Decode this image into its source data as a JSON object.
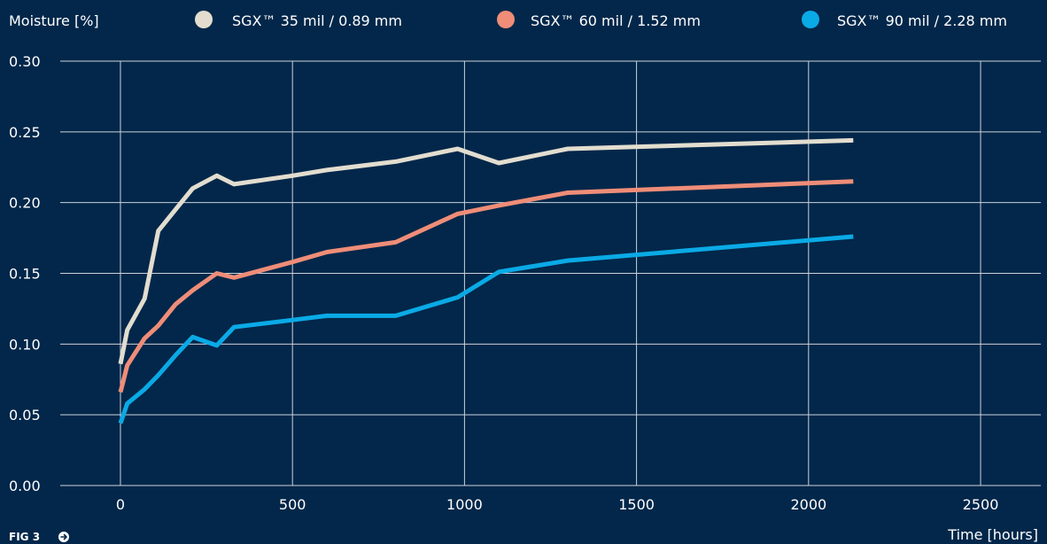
{
  "chart_data": {
    "type": "line",
    "title": "",
    "xlabel": "Time [hours]",
    "ylabel": "Moisture [%]",
    "xlim": [
      -175,
      2675
    ],
    "ylim": [
      0,
      0.3
    ],
    "x_ticks": [
      "0",
      "500",
      "1000",
      "1500",
      "2000",
      "2500"
    ],
    "x_tick_values": [
      0,
      500,
      1000,
      1500,
      2000,
      2500
    ],
    "y_ticks": [
      "0.00",
      "0.05",
      "0.10",
      "0.15",
      "0.20",
      "0.25",
      "0.30"
    ],
    "y_tick_values": [
      0,
      0.05,
      0.1,
      0.15,
      0.2,
      0.25,
      0.3
    ],
    "grid": true,
    "legend_position": "top",
    "series": [
      {
        "name": "SGX™ 35 mil / 0.89 mm",
        "color": "#e2ddcf",
        "points": [
          [
            0,
            0.086
          ],
          [
            20,
            0.11
          ],
          [
            70,
            0.132
          ],
          [
            110,
            0.18
          ],
          [
            160,
            0.195
          ],
          [
            210,
            0.21
          ],
          [
            280,
            0.219
          ],
          [
            330,
            0.213
          ],
          [
            500,
            0.219
          ],
          [
            600,
            0.223
          ],
          [
            800,
            0.229
          ],
          [
            980,
            0.238
          ],
          [
            1100,
            0.228
          ],
          [
            1300,
            0.238
          ],
          [
            2130,
            0.244
          ]
        ]
      },
      {
        "name": "SGX™ 60 mil / 1.52 mm",
        "color": "#ef8d78",
        "points": [
          [
            0,
            0.066
          ],
          [
            20,
            0.085
          ],
          [
            70,
            0.104
          ],
          [
            110,
            0.113
          ],
          [
            160,
            0.128
          ],
          [
            210,
            0.138
          ],
          [
            280,
            0.15
          ],
          [
            330,
            0.147
          ],
          [
            500,
            0.158
          ],
          [
            600,
            0.165
          ],
          [
            800,
            0.172
          ],
          [
            980,
            0.192
          ],
          [
            1100,
            0.198
          ],
          [
            1300,
            0.207
          ],
          [
            2130,
            0.215
          ]
        ]
      },
      {
        "name": "SGX™ 90 mil / 2.28 mm",
        "color": "#0aaae6",
        "points": [
          [
            0,
            0.044
          ],
          [
            20,
            0.058
          ],
          [
            70,
            0.068
          ],
          [
            110,
            0.078
          ],
          [
            160,
            0.092
          ],
          [
            210,
            0.105
          ],
          [
            280,
            0.099
          ],
          [
            330,
            0.112
          ],
          [
            500,
            0.117
          ],
          [
            600,
            0.12
          ],
          [
            800,
            0.12
          ],
          [
            980,
            0.133
          ],
          [
            1100,
            0.151
          ],
          [
            1300,
            0.159
          ],
          [
            2130,
            0.176
          ]
        ]
      }
    ]
  },
  "footer": {
    "fig_label": "FIG 3",
    "arrow_icon": "arrow-right-circle-icon"
  },
  "colors": {
    "background": "#02274a",
    "grid": "#cdd3db"
  }
}
